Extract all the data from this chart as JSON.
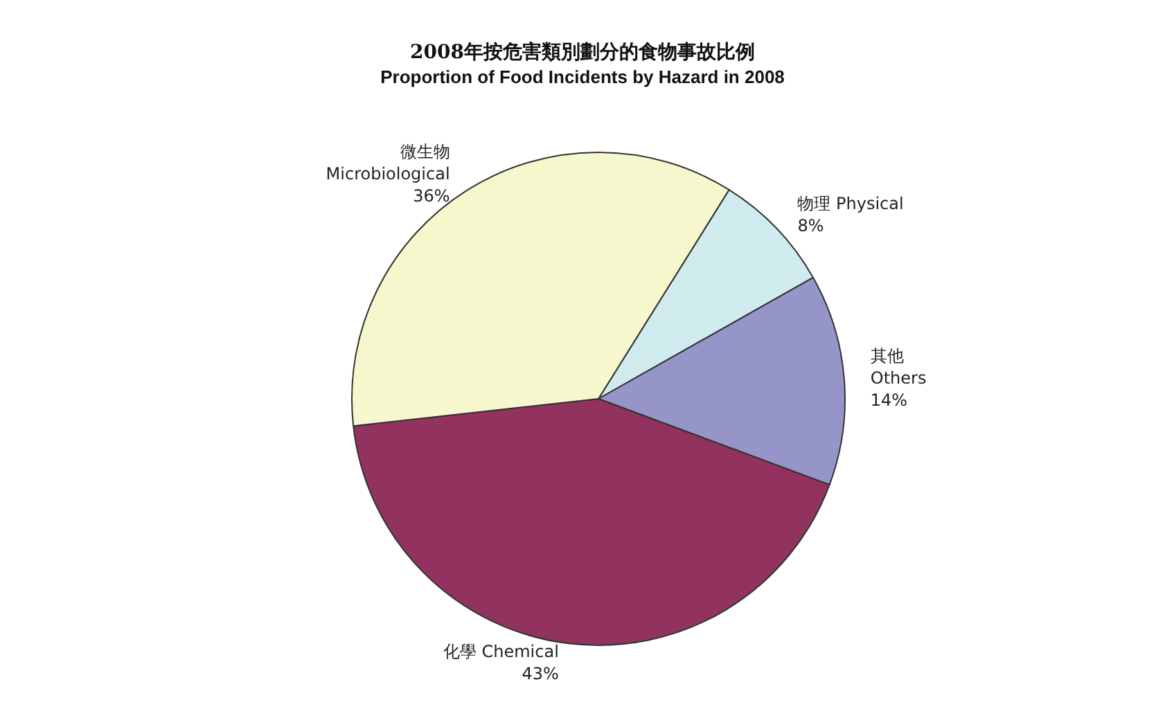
{
  "chart_data": {
    "type": "pie",
    "title": "2008年按危害類別劃分的食物事故比例",
    "subtitle": "Proportion of Food Incidents by Hazard in 2008",
    "categories": [
      "物理 Physical",
      "其他\nOthers",
      "化學 Chemical",
      "微生物\nMicrobiological"
    ],
    "values": [
      8,
      14,
      43,
      36
    ],
    "value_labels": [
      "8%",
      "14%",
      "43%",
      "36%"
    ],
    "colors": [
      "#d0ebee",
      "#9595c8",
      "#92325e",
      "#f7f7cd"
    ],
    "legend": false
  }
}
